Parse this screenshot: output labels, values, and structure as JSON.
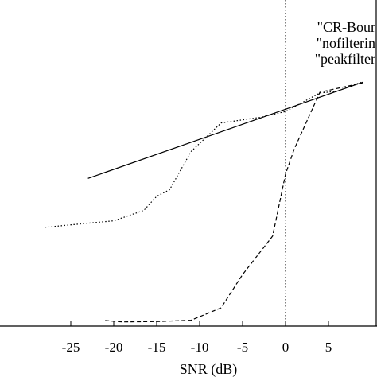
{
  "chart_data": {
    "type": "line",
    "title": "",
    "xlabel": "SNR (dB)",
    "ylabel": "",
    "xlim": [
      -28,
      9
    ],
    "ylim": [
      0,
      100
    ],
    "x_ticks": [
      -25,
      -20,
      -15,
      -10,
      -5,
      0,
      5
    ],
    "grid": false,
    "legend_position": "top-right",
    "reference_line": {
      "x": 0,
      "style": "dotted"
    },
    "series": [
      {
        "name": "\"CR-Bound\"",
        "legend_text": "\"CR-Bour",
        "style": "solid",
        "color": "#000000",
        "points": [
          [
            -23,
            45.3
          ],
          [
            9,
            74.8
          ]
        ]
      },
      {
        "name": "\"nofiltering\"",
        "legend_text": "\"nofilterin",
        "style": "dotted",
        "color": "#000000",
        "points": [
          [
            -28,
            30.3
          ],
          [
            -20,
            32.3
          ],
          [
            -16.5,
            35.5
          ],
          [
            -15,
            39.8
          ],
          [
            -13.5,
            41.8
          ],
          [
            -11,
            53.5
          ],
          [
            -7.5,
            62.3
          ],
          [
            -3,
            64.0
          ],
          [
            0,
            65.8
          ],
          [
            4,
            71.5
          ],
          [
            6,
            72.0
          ],
          [
            9,
            75.0
          ]
        ]
      },
      {
        "name": "\"peakfiltered\"",
        "legend_text": "\"peakfilter",
        "style": "dashed",
        "color": "#000000",
        "points": [
          [
            -21,
            1.7
          ],
          [
            -19,
            1.3
          ],
          [
            -15,
            1.4
          ],
          [
            -11,
            1.8
          ],
          [
            -7.5,
            5.6
          ],
          [
            -5,
            15.8
          ],
          [
            -1.5,
            27.6
          ],
          [
            0,
            46.6
          ],
          [
            1,
            54.2
          ],
          [
            4,
            71.7
          ],
          [
            9,
            74.6
          ]
        ]
      }
    ]
  }
}
